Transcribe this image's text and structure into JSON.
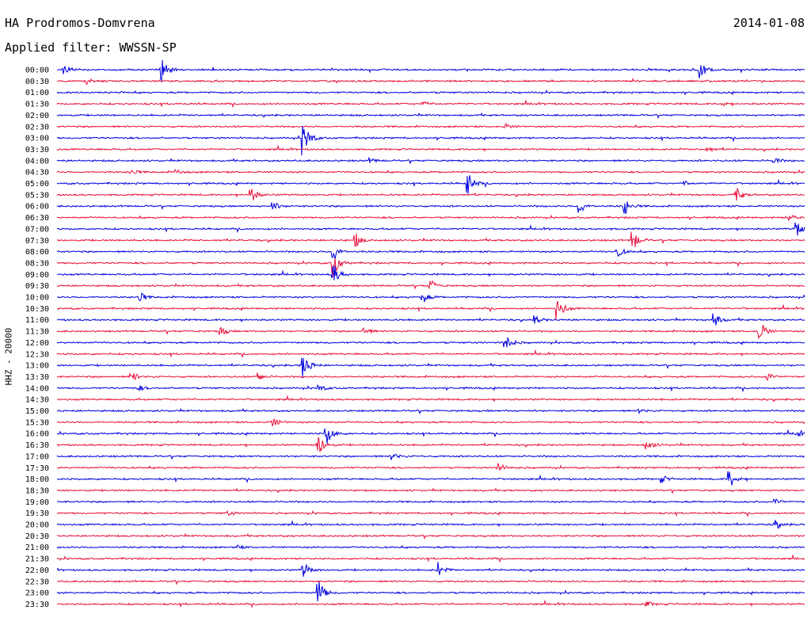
{
  "header": {
    "station": "HA Prodromos-Domvrena",
    "filter": "Applied filter: WWSSN-SP",
    "date": "2014-01-08",
    "channel": "HHZ - 20000"
  },
  "chart_data": {
    "type": "line",
    "subtype": "helicorder",
    "colors": {
      "even_rows": "#0000dd",
      "odd_rows": "#e8103a"
    },
    "rows": [
      {
        "label": "00:00",
        "events": [
          {
            "t": 0.01,
            "a": 6
          },
          {
            "t": 0.14,
            "a": 15
          },
          {
            "t": 0.86,
            "a": 14
          }
        ]
      },
      {
        "label": "00:30",
        "events": [
          {
            "t": 0.04,
            "a": 3
          }
        ]
      },
      {
        "label": "01:00",
        "events": []
      },
      {
        "label": "01:30",
        "events": [
          {
            "t": 0.49,
            "a": 3
          },
          {
            "t": 0.89,
            "a": 3
          }
        ]
      },
      {
        "label": "02:00",
        "events": []
      },
      {
        "label": "02:30",
        "events": [
          {
            "t": 0.6,
            "a": 3
          }
        ]
      },
      {
        "label": "03:00",
        "events": [
          {
            "t": 0.33,
            "a": 22
          }
        ]
      },
      {
        "label": "03:30",
        "events": [
          {
            "t": 0.87,
            "a": 4
          }
        ]
      },
      {
        "label": "04:00",
        "events": [
          {
            "t": 0.42,
            "a": 3
          },
          {
            "t": 0.96,
            "a": 4
          }
        ]
      },
      {
        "label": "04:30",
        "events": [
          {
            "t": 0.1,
            "a": 4
          },
          {
            "t": 0.16,
            "a": 3
          }
        ]
      },
      {
        "label": "05:00",
        "events": [
          {
            "t": 0.55,
            "a": 14
          },
          {
            "t": 0.84,
            "a": 3
          }
        ]
      },
      {
        "label": "05:30",
        "events": [
          {
            "t": 0.26,
            "a": 10
          },
          {
            "t": 0.91,
            "a": 8
          }
        ]
      },
      {
        "label": "06:00",
        "events": [
          {
            "t": 0.29,
            "a": 5
          },
          {
            "t": 0.7,
            "a": 8
          },
          {
            "t": 0.76,
            "a": 10
          }
        ]
      },
      {
        "label": "06:30",
        "events": [
          {
            "t": 0.98,
            "a": 5
          }
        ]
      },
      {
        "label": "07:00",
        "events": [
          {
            "t": 0.99,
            "a": 10
          }
        ]
      },
      {
        "label": "07:30",
        "events": [
          {
            "t": 0.4,
            "a": 8
          },
          {
            "t": 0.77,
            "a": 14
          }
        ]
      },
      {
        "label": "08:00",
        "events": [
          {
            "t": 0.37,
            "a": 12
          },
          {
            "t": 0.75,
            "a": 7
          }
        ]
      },
      {
        "label": "08:30",
        "events": [
          {
            "t": 0.37,
            "a": 18
          }
        ]
      },
      {
        "label": "09:00",
        "events": [
          {
            "t": 0.37,
            "a": 14
          }
        ]
      },
      {
        "label": "09:30",
        "events": [
          {
            "t": 0.5,
            "a": 8
          }
        ]
      },
      {
        "label": "10:00",
        "events": [
          {
            "t": 0.11,
            "a": 7
          },
          {
            "t": 0.49,
            "a": 7
          }
        ]
      },
      {
        "label": "10:30",
        "events": [
          {
            "t": 0.67,
            "a": 16
          }
        ]
      },
      {
        "label": "11:00",
        "events": [
          {
            "t": 0.64,
            "a": 5
          },
          {
            "t": 0.88,
            "a": 8
          }
        ]
      },
      {
        "label": "11:30",
        "events": [
          {
            "t": 0.22,
            "a": 5
          },
          {
            "t": 0.41,
            "a": 6
          },
          {
            "t": 0.94,
            "a": 14
          }
        ]
      },
      {
        "label": "12:00",
        "events": [
          {
            "t": 0.6,
            "a": 12
          }
        ]
      },
      {
        "label": "12:30",
        "events": []
      },
      {
        "label": "13:00",
        "events": [
          {
            "t": 0.33,
            "a": 16
          }
        ]
      },
      {
        "label": "13:30",
        "events": [
          {
            "t": 0.1,
            "a": 7
          },
          {
            "t": 0.27,
            "a": 5
          },
          {
            "t": 0.95,
            "a": 6
          }
        ]
      },
      {
        "label": "14:00",
        "events": [
          {
            "t": 0.11,
            "a": 3
          },
          {
            "t": 0.35,
            "a": 4
          }
        ]
      },
      {
        "label": "14:30",
        "events": []
      },
      {
        "label": "15:00",
        "events": [
          {
            "t": 0.78,
            "a": 3
          }
        ]
      },
      {
        "label": "15:30",
        "events": [
          {
            "t": 0.29,
            "a": 5
          }
        ]
      },
      {
        "label": "16:00",
        "events": [
          {
            "t": 0.36,
            "a": 15
          },
          {
            "t": 0.99,
            "a": 4
          }
        ]
      },
      {
        "label": "16:30",
        "events": [
          {
            "t": 0.35,
            "a": 15
          },
          {
            "t": 0.79,
            "a": 6
          }
        ]
      },
      {
        "label": "17:00",
        "events": [
          {
            "t": 0.45,
            "a": 5
          }
        ]
      },
      {
        "label": "17:30",
        "events": [
          {
            "t": 0.59,
            "a": 6
          }
        ]
      },
      {
        "label": "18:00",
        "events": [
          {
            "t": 0.81,
            "a": 4
          },
          {
            "t": 0.9,
            "a": 12
          }
        ]
      },
      {
        "label": "18:30",
        "events": []
      },
      {
        "label": "19:00",
        "events": [
          {
            "t": 0.96,
            "a": 4
          }
        ]
      },
      {
        "label": "19:30",
        "events": [
          {
            "t": 0.23,
            "a": 3
          }
        ]
      },
      {
        "label": "20:00",
        "events": [
          {
            "t": 0.96,
            "a": 6
          }
        ]
      },
      {
        "label": "20:30",
        "events": []
      },
      {
        "label": "21:00",
        "events": [
          {
            "t": 0.24,
            "a": 3
          }
        ]
      },
      {
        "label": "21:30",
        "events": []
      },
      {
        "label": "22:00",
        "events": [
          {
            "t": 0.33,
            "a": 10
          },
          {
            "t": 0.51,
            "a": 10
          }
        ]
      },
      {
        "label": "22:30",
        "events": []
      },
      {
        "label": "23:00",
        "events": [
          {
            "t": 0.35,
            "a": 16
          }
        ]
      },
      {
        "label": "23:30",
        "events": [
          {
            "t": 0.79,
            "a": 3
          }
        ]
      }
    ]
  }
}
